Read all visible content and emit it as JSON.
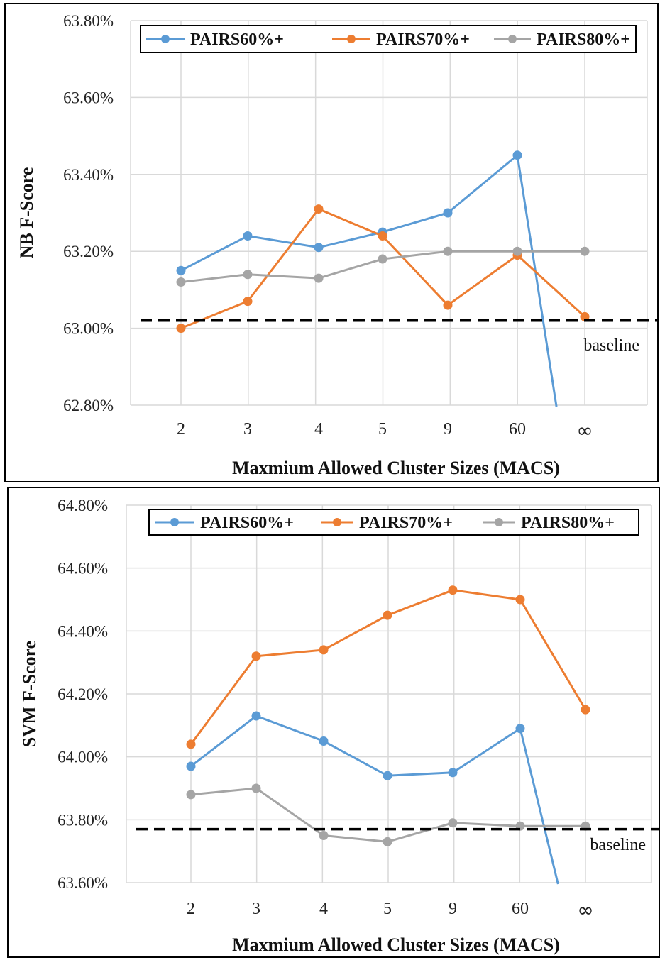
{
  "chart_data": [
    {
      "type": "line",
      "categories": [
        "2",
        "3",
        "4",
        "5",
        "9",
        "60",
        "∞"
      ],
      "ylabel": "NB F-Score",
      "xlabel": "Maxmium Allowed Cluster Sizes (MACS)",
      "ylim": [
        62.8,
        63.8
      ],
      "ytick_labels": [
        "63.80%",
        "63.60%",
        "63.40%",
        "63.20%",
        "63.00%",
        "62.80%"
      ],
      "yticks": [
        63.8,
        63.6,
        63.4,
        63.2,
        63.0,
        62.8
      ],
      "grid": true,
      "legend": "top",
      "series": [
        {
          "name": "PAIRS60%+",
          "color": "#5b9bd5",
          "values": [
            63.15,
            63.24,
            63.21,
            63.25,
            63.3,
            63.45,
            null
          ],
          "drop_to_below_axis": true
        },
        {
          "name": "PAIRS70%+",
          "color": "#ed7d31",
          "values": [
            63.0,
            63.07,
            63.31,
            63.24,
            63.06,
            63.19,
            63.03
          ]
        },
        {
          "name": "PAIRS80%+",
          "color": "#a5a5a5",
          "values": [
            63.12,
            63.14,
            63.13,
            63.18,
            63.2,
            63.2,
            63.2
          ]
        }
      ],
      "baseline": {
        "value": 63.02,
        "label": "baseline"
      }
    },
    {
      "type": "line",
      "categories": [
        "2",
        "3",
        "4",
        "5",
        "9",
        "60",
        "∞"
      ],
      "ylabel": "SVM F-Score",
      "xlabel": "Maxmium Allowed Cluster Sizes (MACS)",
      "ylim": [
        63.6,
        64.8
      ],
      "ytick_labels": [
        "64.80%",
        "64.60%",
        "64.40%",
        "64.20%",
        "64.00%",
        "63.80%",
        "63.60%"
      ],
      "yticks": [
        64.8,
        64.6,
        64.4,
        64.2,
        64.0,
        63.8,
        63.6
      ],
      "grid": true,
      "legend": "top",
      "series": [
        {
          "name": "PAIRS60%+",
          "color": "#5b9bd5",
          "values": [
            63.97,
            64.13,
            64.05,
            63.94,
            63.95,
            64.09,
            null
          ],
          "drop_to_below_axis": true
        },
        {
          "name": "PAIRS70%+",
          "color": "#ed7d31",
          "values": [
            64.04,
            64.32,
            64.34,
            64.45,
            64.53,
            64.5,
            64.15
          ]
        },
        {
          "name": "PAIRS80%+",
          "color": "#a5a5a5",
          "values": [
            63.88,
            63.9,
            63.75,
            63.73,
            63.79,
            63.78,
            63.78
          ]
        }
      ],
      "baseline": {
        "value": 63.77,
        "label": "baseline"
      }
    }
  ]
}
